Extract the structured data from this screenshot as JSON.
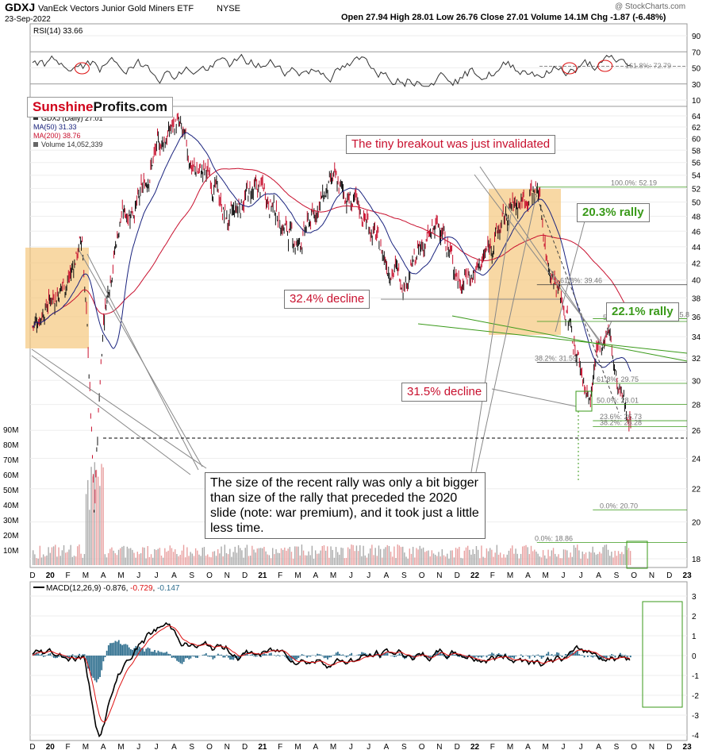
{
  "header": {
    "symbol": "GDXJ",
    "name": "VanEck Vectors Junior Gold Miners ETF",
    "exchange": "NYSE",
    "date": "23-Sep-2022",
    "ohlc": "Open 27.94  High 28.01  Low 26.76  Close 27.01  Volume 14.1M  Chg -1.87 (-6.48%)",
    "watermark": "@ StockCharts.com"
  },
  "logo": {
    "part1": "Sunshine",
    "part2": "Profits.com"
  },
  "legend": {
    "main": "GDXJ (Daily) 27.01",
    "ma50": "MA(50) 31.33",
    "ma200": "MA(200) 38.76",
    "volume": "Volume 14,052,339"
  },
  "rsi_panel": {
    "label": "RSI(14) 33.66",
    "ticks": [
      "90",
      "70",
      "50",
      "30",
      "10"
    ],
    "fib_label": "161.8%: 72.79"
  },
  "macd_panel": {
    "label_prefix": "MACD(12,26,9) -0.876, ",
    "label_sig": "-0.729",
    "label_sep": ", ",
    "label_hist": "-0.147",
    "ticks": [
      "3",
      "2",
      "1",
      "0",
      "-1",
      "-2",
      "-3",
      "-4"
    ]
  },
  "price_axis": [
    "64",
    "62",
    "60",
    "58",
    "56",
    "54",
    "52",
    "50",
    "48",
    "46",
    "44",
    "42",
    "40",
    "38",
    "36",
    "34",
    "32",
    "30",
    "28",
    "26",
    "24",
    "22",
    "20",
    "18"
  ],
  "volume_axis": [
    "90M",
    "80M",
    "70M",
    "60M",
    "50M",
    "40M",
    "30M",
    "20M",
    "10M"
  ],
  "x_axis": [
    "D",
    "20",
    "F",
    "M",
    "A",
    "M",
    "J",
    "J",
    "A",
    "S",
    "O",
    "N",
    "D",
    "21",
    "F",
    "M",
    "A",
    "M",
    "J",
    "J",
    "A",
    "S",
    "O",
    "N",
    "D",
    "22",
    "F",
    "M",
    "A",
    "M",
    "J",
    "J",
    "A",
    "S",
    "O",
    "N",
    "D",
    "23"
  ],
  "fib_levels": [
    {
      "label": "100.0%: 52.19"
    },
    {
      "label": "61.8%: 39.46"
    },
    {
      "label": "50.0%: 35.52"
    },
    {
      "label": "100.0%: 35.8"
    },
    {
      "label": "38.2%: 31.59"
    },
    {
      "label": "61.8%: 29.75"
    },
    {
      "label": "50.0%: 28.01"
    },
    {
      "label": "23.6%: 26.73"
    },
    {
      "label": "38.2%: 26.28"
    },
    {
      "label": "0.0%: 20.70"
    },
    {
      "label": "0.0%: 18.86"
    }
  ],
  "annotations": {
    "breakout": "The tiny breakout was just invalidated",
    "decline_324": "32.4% decline",
    "decline_315": "31.5% decline",
    "rally_203": "20.3% rally",
    "rally_221": "22.1% rally",
    "main_note": "The size of the recent rally was only a bit bigger than size of the rally that preceded the 2020 slide (note: war premium), and it took just a little less time."
  },
  "colors": {
    "price_up": "#111111",
    "price_down": "#c8102e",
    "ma50": "#1a237e",
    "ma200": "#c8102e",
    "highlight": "#f5c77e",
    "macd_hist": "#2e6e8e",
    "green": "#3a9a1a"
  },
  "chart_data": {
    "type": "line",
    "title": "GDXJ VanEck Vectors Junior Gold Miners ETF",
    "x_range": [
      "Dec 2019",
      "Sep 23 2022"
    ],
    "y_scale": "log",
    "ylim": [
      18,
      65
    ],
    "series": [
      {
        "name": "GDXJ (Daily) 27.01",
        "points": [
          [
            "2019-12",
            35
          ],
          [
            "2020-01",
            38
          ],
          [
            "2020-02",
            40
          ],
          [
            "2020-02-24",
            45
          ],
          [
            "2020-03-16",
            20
          ],
          [
            "2020-04",
            36
          ],
          [
            "2020-05",
            48
          ],
          [
            "2020-06",
            50
          ],
          [
            "2020-07",
            58
          ],
          [
            "2020-08-05",
            63
          ],
          [
            "2020-09",
            55
          ],
          [
            "2020-10",
            54
          ],
          [
            "2020-11",
            47
          ],
          [
            "2020-12",
            51
          ],
          [
            "2021-01",
            52
          ],
          [
            "2021-02",
            47
          ],
          [
            "2021-03",
            44
          ],
          [
            "2021-04",
            49
          ],
          [
            "2021-05",
            53
          ],
          [
            "2021-06",
            50
          ],
          [
            "2021-07",
            47
          ],
          [
            "2021-08",
            42
          ],
          [
            "2021-09",
            40
          ],
          [
            "2021-10",
            44
          ],
          [
            "2021-11",
            47
          ],
          [
            "2021-12",
            40
          ],
          [
            "2022-01",
            41
          ],
          [
            "2022-02",
            45
          ],
          [
            "2022-03",
            49
          ],
          [
            "2022-04-18",
            52.19
          ],
          [
            "2022-05",
            43
          ],
          [
            "2022-06",
            37
          ],
          [
            "2022-07-14",
            28
          ],
          [
            "2022-08",
            33
          ],
          [
            "2022-08-15",
            35
          ],
          [
            "2022-09",
            29
          ],
          [
            "2022-09-23",
            27.01
          ]
        ]
      },
      {
        "name": "MA(50) 31.33"
      },
      {
        "name": "MA(200) 38.76"
      }
    ],
    "volume_ylim_millions": [
      0,
      90
    ],
    "rsi_last": 33.66,
    "macd": {
      "macd": -0.876,
      "signal": -0.729,
      "histogram": -0.147,
      "ylim": [
        -4,
        3
      ]
    }
  }
}
